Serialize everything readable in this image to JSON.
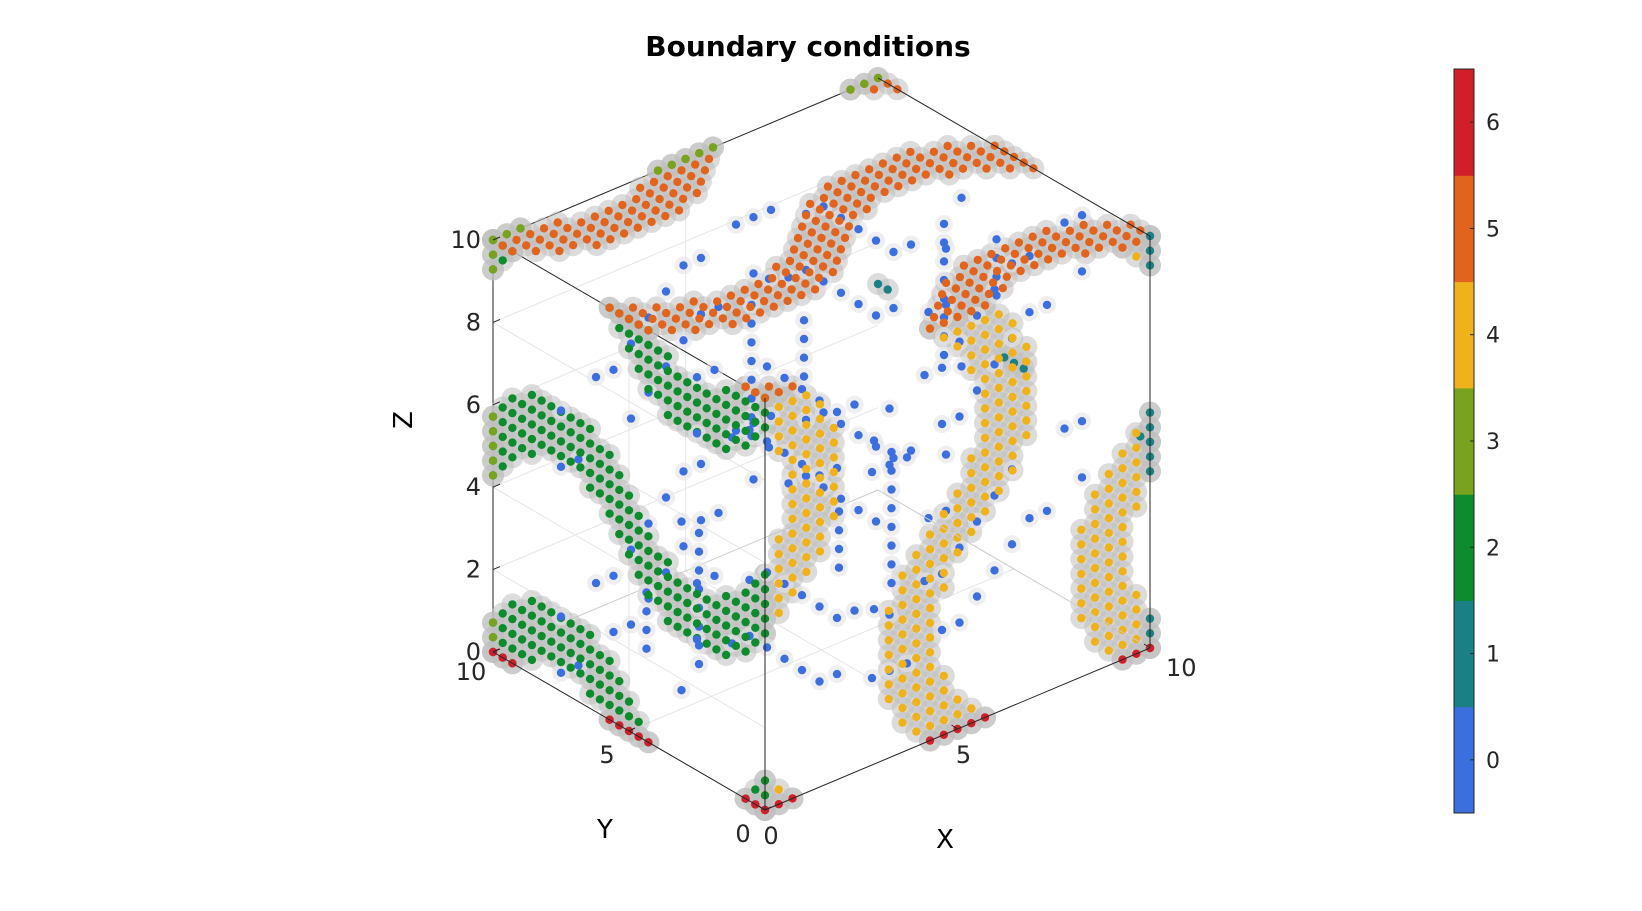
{
  "chart_data": {
    "type": "scatter",
    "subtype": "3d-scatter-on-surface",
    "title": "Boundary conditions",
    "xlabel": "X",
    "ylabel": "Y",
    "zlabel": "Z",
    "xlim": [
      0,
      10
    ],
    "ylim": [
      0,
      10
    ],
    "zlim": [
      0,
      10
    ],
    "xticks": [
      "0",
      "5",
      "10"
    ],
    "yticks": [
      "0",
      "5",
      "10"
    ],
    "zticks": [
      "0",
      "2",
      "4",
      "6",
      "8",
      "10"
    ],
    "grid": true,
    "surface_color": "#c8c8c8",
    "colorbar": {
      "ticks": [
        "0",
        "1",
        "2",
        "3",
        "4",
        "5",
        "6"
      ],
      "range": [
        -0.5,
        6.5
      ],
      "colors": [
        "#3b6fe0",
        "#1b8086",
        "#0c8c2c",
        "#77a31f",
        "#efb21b",
        "#e2641c",
        "#d11f2a"
      ]
    },
    "series": [
      {
        "label_value": 0,
        "color": "#3b6fe0",
        "region": "interior surface"
      },
      {
        "label_value": 1,
        "color": "#1b8086",
        "region": "x = 10 face"
      },
      {
        "label_value": 2,
        "color": "#0c8c2c",
        "region": "x = 0 face"
      },
      {
        "label_value": 3,
        "color": "#77a31f",
        "region": "y = 10 face"
      },
      {
        "label_value": 4,
        "color": "#efb21b",
        "region": "y = 0 face"
      },
      {
        "label_value": 5,
        "color": "#e2641c",
        "region": "z = 10 face"
      },
      {
        "label_value": 6,
        "color": "#d11f2a",
        "region": "z = 0 face"
      }
    ]
  }
}
